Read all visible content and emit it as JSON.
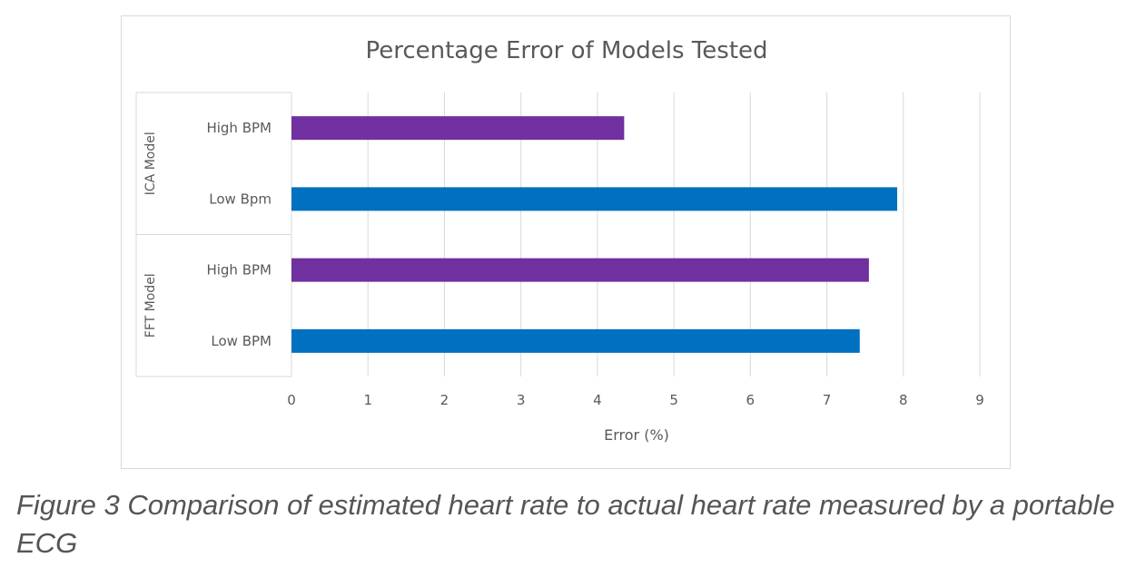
{
  "chart_data": {
    "type": "bar",
    "orientation": "horizontal",
    "title": "Percentage Error of Models Tested",
    "xlabel": "Error (%)",
    "ylabel": "",
    "xlim": [
      0,
      9
    ],
    "ticks": [
      0,
      1,
      2,
      3,
      4,
      5,
      6,
      7,
      8,
      9
    ],
    "grid": true,
    "groups": [
      {
        "label": "ICA Model",
        "bars": [
          {
            "category": "High BPM",
            "value": 4.35,
            "color": "#7030a0"
          },
          {
            "category": "Low Bpm",
            "value": 7.92,
            "color": "#0070c0"
          }
        ]
      },
      {
        "label": "FFT Model",
        "bars": [
          {
            "category": "High BPM",
            "value": 7.55,
            "color": "#7030a0"
          },
          {
            "category": "Low BPM",
            "value": 7.43,
            "color": "#0070c0"
          }
        ]
      }
    ]
  },
  "caption": "Figure 3  Comparison of estimated heart rate to actual heart rate measured by a portable ECG"
}
